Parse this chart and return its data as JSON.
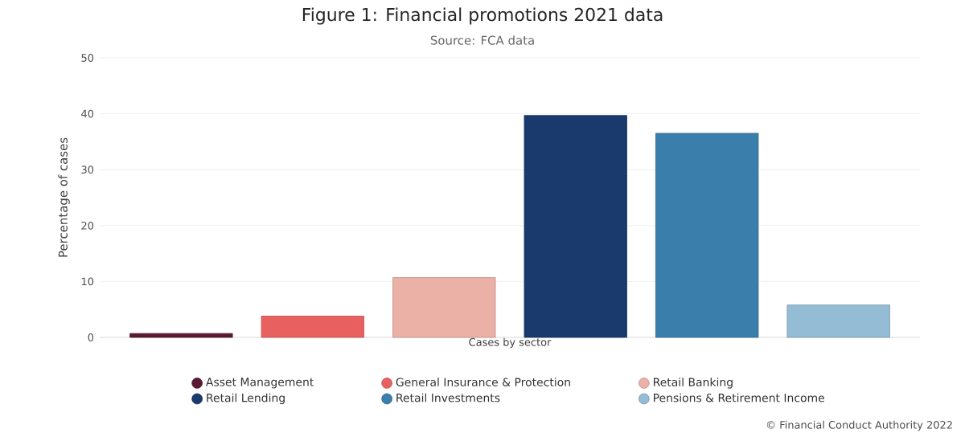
{
  "chart_data": {
    "type": "bar",
    "title": "Figure 1: Financial promotions 2021 data",
    "subtitle": "Source: FCA data",
    "xlabel": "Cases by sector",
    "ylabel": "Percentage of cases",
    "categories": [
      null,
      null,
      null,
      null,
      null,
      null
    ],
    "series": [
      {
        "name": "Asset Management",
        "color": "#5a1a33",
        "values": [
          0.7,
          null,
          null,
          null,
          null,
          null
        ]
      },
      {
        "name": "General Insurance & Protection",
        "color": "#e8605f",
        "values": [
          null,
          3.8,
          null,
          null,
          null,
          null
        ]
      },
      {
        "name": "Retail Banking",
        "color": "#ebb1a6",
        "values": [
          null,
          null,
          10.7,
          null,
          null,
          null
        ]
      },
      {
        "name": "Retail Lending",
        "color": "#1a3a6e",
        "values": [
          null,
          null,
          null,
          39.7,
          null,
          null
        ]
      },
      {
        "name": "Retail Investments",
        "color": "#3a7eab",
        "values": [
          null,
          null,
          null,
          null,
          36.5,
          null
        ]
      },
      {
        "name": "Pensions & Retirement Income",
        "color": "#94bcd4",
        "values": [
          null,
          null,
          null,
          null,
          null,
          5.8
        ]
      }
    ],
    "ylim": [
      0,
      50
    ],
    "yticks": [
      0,
      10,
      20,
      30,
      40,
      50
    ],
    "grid": "y",
    "legend": "bottom",
    "annotations": [
      "© Financial Conduct Authority 2022"
    ]
  }
}
